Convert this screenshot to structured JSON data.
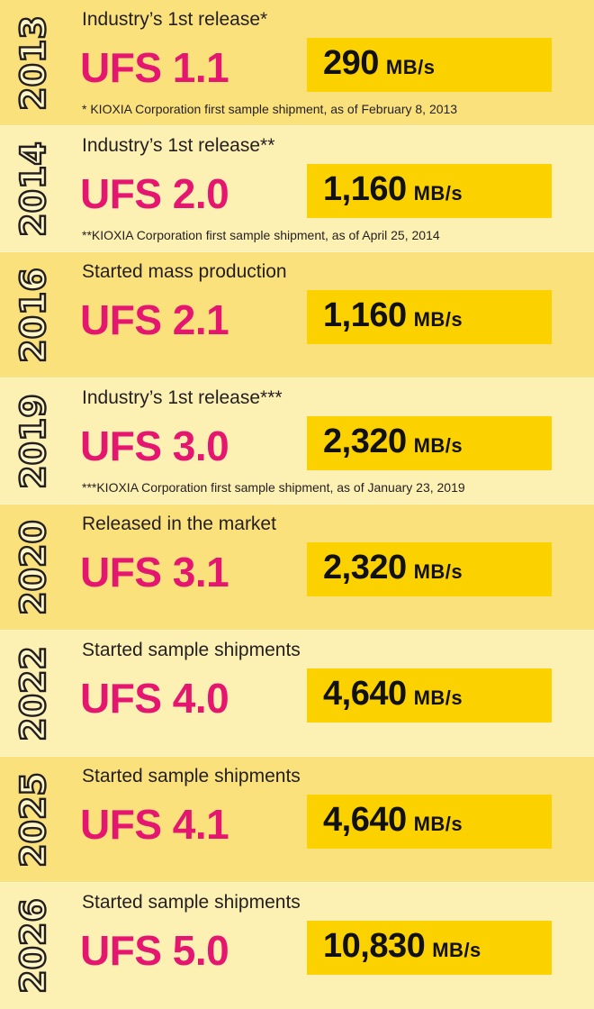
{
  "timeline": [
    {
      "year": "2013",
      "status": "Industry’s 1st release*",
      "model": "UFS 1.1",
      "speed": "290",
      "unit": "MB/s",
      "footnote": "* KIOXIA Corporation first sample shipment, as of February 8, 2013",
      "box_color": "#fcd100"
    },
    {
      "year": "2014",
      "status": "Industry’s 1st release**",
      "model": "UFS 2.0",
      "speed": "1,160",
      "unit": "MB/s",
      "footnote": "**KIOXIA Corporation first sample shipment, as of April 25, 2014",
      "box_color": "#fcd100"
    },
    {
      "year": "2016",
      "status": "Started mass production",
      "model": "UFS 2.1",
      "speed": "1,160",
      "unit": "MB/s",
      "footnote": "",
      "box_color": "#fcd100"
    },
    {
      "year": "2019",
      "status": "Industry’s 1st release***",
      "model": "UFS 3.0",
      "speed": "2,320",
      "unit": "MB/s",
      "footnote": "***KIOXIA Corporation first sample shipment, as of January 23, 2019",
      "box_color": "#fcd100"
    },
    {
      "year": "2020",
      "status": "Released in the market",
      "model": "UFS 3.1",
      "speed": "2,320",
      "unit": "MB/s",
      "footnote": "",
      "box_color": "#fcd100"
    },
    {
      "year": "2022",
      "status": "Started sample shipments",
      "model": "UFS 4.0",
      "speed": "4,640",
      "unit": "MB/s",
      "footnote": "",
      "box_color": "#fcd100"
    },
    {
      "year": "2025",
      "status": "Started sample shipments",
      "model": "UFS 4.1",
      "speed": "4,640",
      "unit": "MB/s",
      "footnote": "",
      "box_color": "#fcd100"
    },
    {
      "year": "2026",
      "status": "Started sample shipments",
      "model": "UFS 5.0",
      "speed": "10,830",
      "unit": "MB/s",
      "footnote": "",
      "box_color": "#fcd100"
    }
  ],
  "colors": {
    "row_dark": "#fbe17c",
    "row_light": "#fdf0b3",
    "model_text": "#e5166f",
    "speed_box": "#fcd100"
  }
}
